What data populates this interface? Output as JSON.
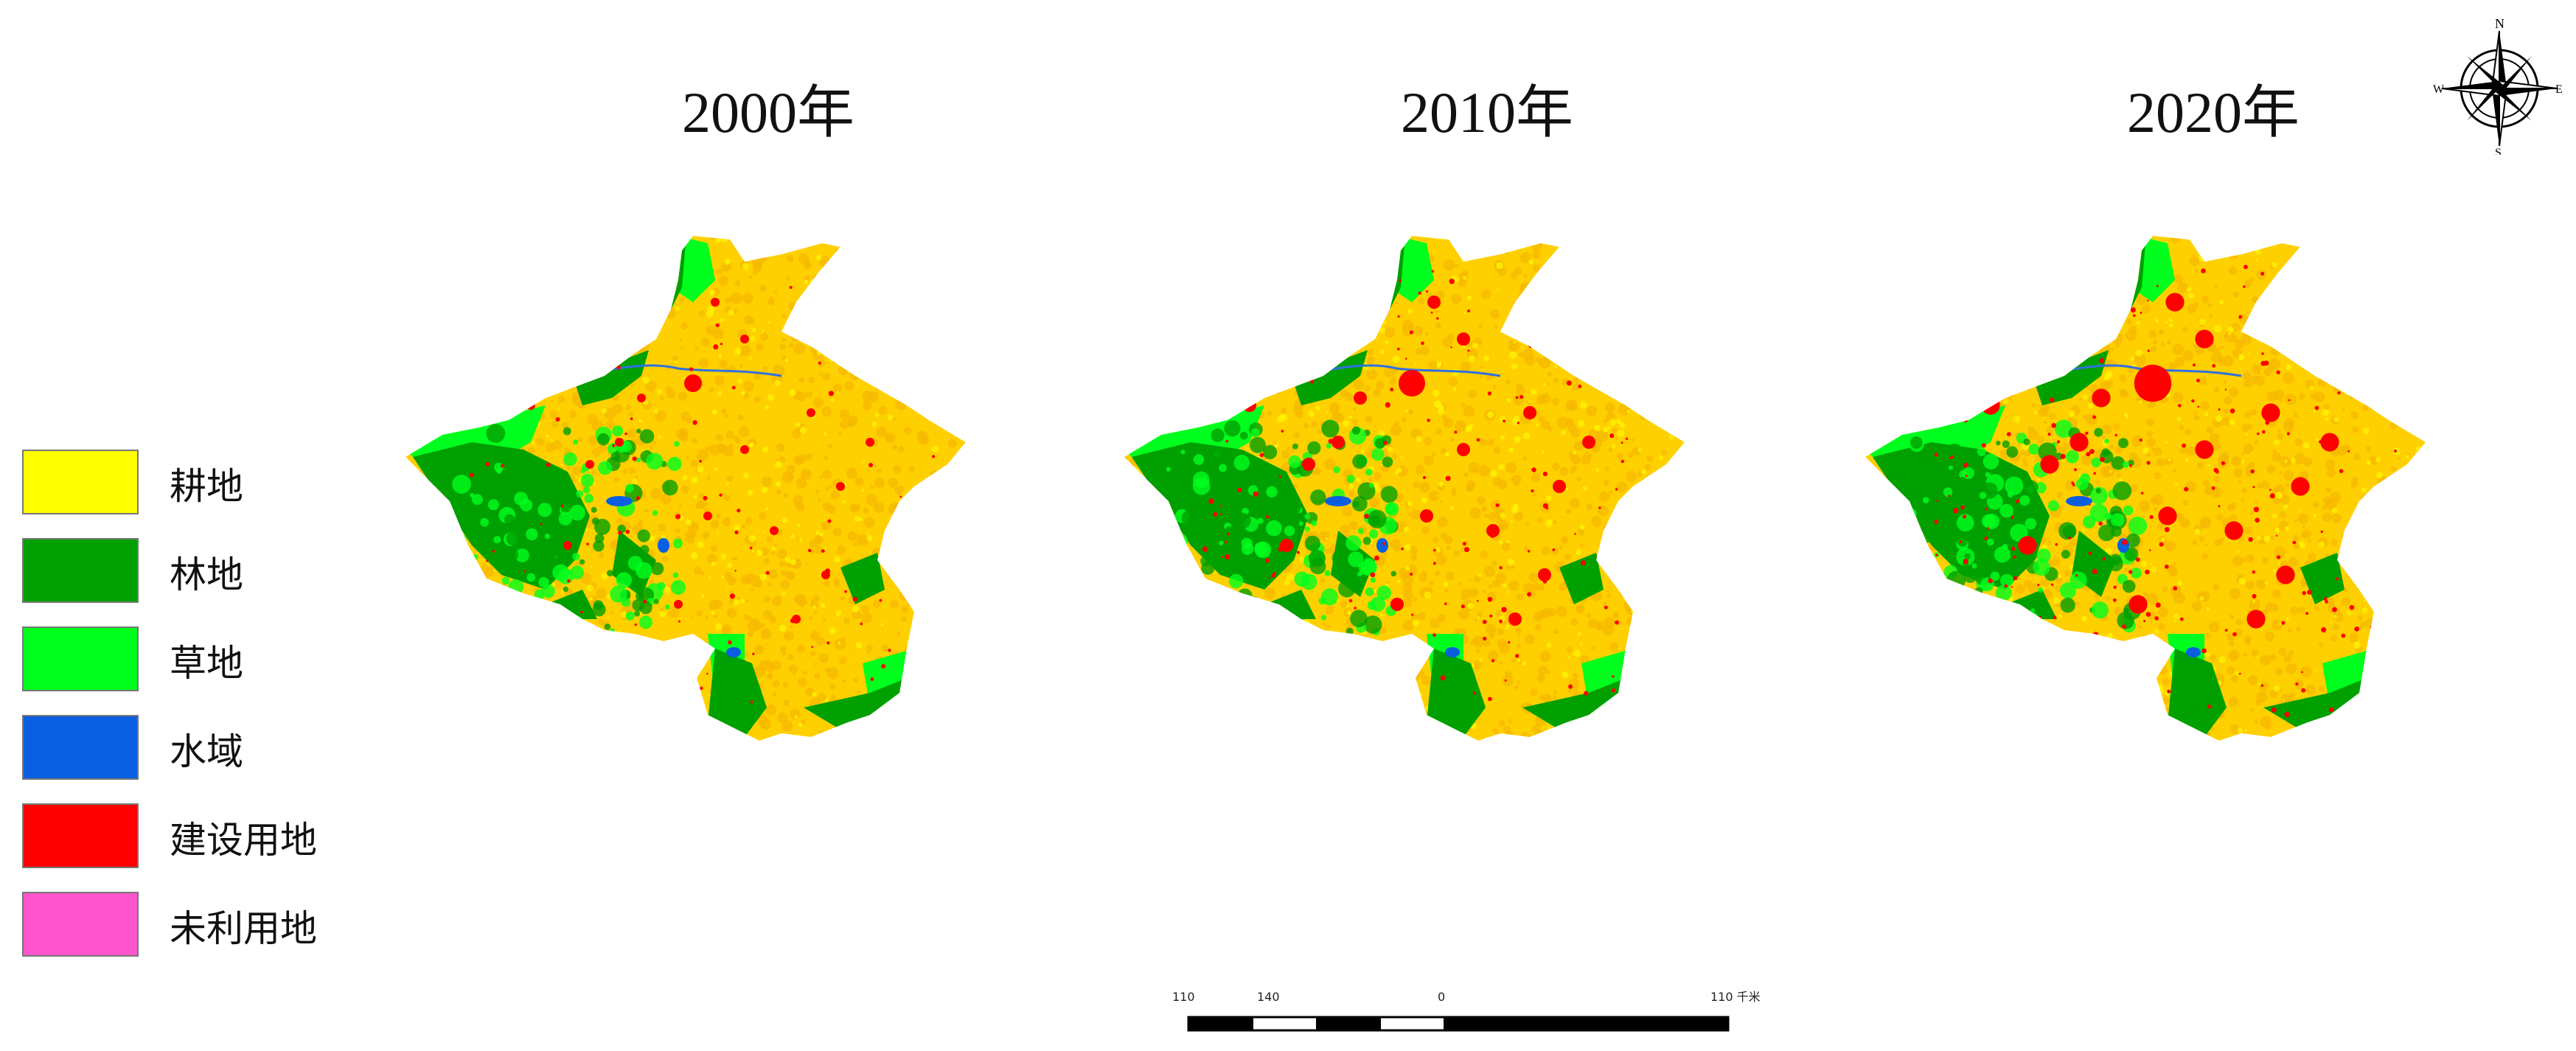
{
  "titles": [
    "2000年",
    "2010年",
    "2020年"
  ],
  "legend": [
    {
      "label": "耕地",
      "color": "#FFFF00"
    },
    {
      "label": "林地",
      "color": "#00A000"
    },
    {
      "label": "草地",
      "color": "#00FF1E"
    },
    {
      "label": "水域",
      "color": "#0A5FE0"
    },
    {
      "label": "建设用地",
      "color": "#FF0000"
    },
    {
      "label": "未利用地",
      "color": "#FF55CC"
    }
  ],
  "maps": [
    {
      "year": "2000年",
      "icon": "land-use-map-2000"
    },
    {
      "year": "2010年",
      "icon": "land-use-map-2010"
    },
    {
      "year": "2020年",
      "icon": "land-use-map-2020"
    }
  ],
  "compass": {
    "n": "N",
    "s": "S",
    "e": "E",
    "w": "W"
  },
  "scale": {
    "labels": [
      "110",
      "140",
      "0",
      "110 千米"
    ]
  },
  "colors": {
    "cropland_dense": "#F5B800",
    "forest": "#00A000",
    "grass": "#00FF1E",
    "water": "#0A5FE0",
    "builtup": "#FF0000",
    "cropland": "#FFD000"
  }
}
